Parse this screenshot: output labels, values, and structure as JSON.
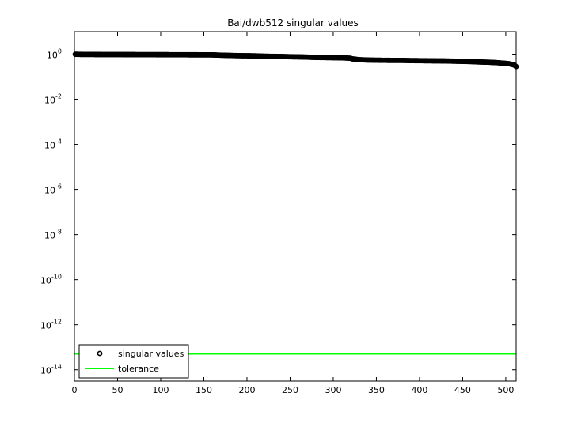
{
  "chart_data": {
    "type": "scatter",
    "title": "Bai/dwb512 singular values",
    "xlabel": "",
    "ylabel": "",
    "xlim": [
      0,
      512
    ],
    "ylim": [
      3.16e-15,
      10
    ],
    "yscale": "log",
    "x_ticks": [
      0,
      50,
      100,
      150,
      200,
      250,
      300,
      350,
      400,
      450,
      500
    ],
    "x_tick_labels": [
      "0",
      "50",
      "100",
      "150",
      "200",
      "250",
      "300",
      "350",
      "400",
      "450",
      "500"
    ],
    "y_ticks": [
      {
        "value": 1.0,
        "base": "10",
        "exp": "0"
      },
      {
        "value": 0.01,
        "base": "10",
        "exp": "-2"
      },
      {
        "value": 0.0001,
        "base": "10",
        "exp": "-4"
      },
      {
        "value": 1e-06,
        "base": "10",
        "exp": "-6"
      },
      {
        "value": 1e-08,
        "base": "10",
        "exp": "-8"
      },
      {
        "value": 1e-10,
        "base": "10",
        "exp": "-10"
      },
      {
        "value": 1e-12,
        "base": "10",
        "exp": "-12"
      },
      {
        "value": 1e-14,
        "base": "10",
        "exp": "-14"
      }
    ],
    "grid": false,
    "legend_position": "bottom-left",
    "series": [
      {
        "name": "singular values",
        "marker": "circle-open",
        "color": "#000000",
        "x": [
          1,
          10,
          20,
          30,
          40,
          50,
          60,
          70,
          80,
          90,
          100,
          110,
          120,
          130,
          140,
          150,
          160,
          170,
          180,
          190,
          200,
          210,
          220,
          230,
          240,
          250,
          260,
          270,
          280,
          290,
          300,
          310,
          320,
          322,
          330,
          340,
          350,
          360,
          370,
          380,
          390,
          400,
          410,
          420,
          430,
          440,
          450,
          460,
          470,
          480,
          490,
          500,
          505,
          510,
          512
        ],
        "y": [
          0.99,
          0.97,
          0.97,
          0.965,
          0.96,
          0.96,
          0.958,
          0.955,
          0.952,
          0.95,
          0.948,
          0.945,
          0.943,
          0.94,
          0.937,
          0.933,
          0.93,
          0.9,
          0.88,
          0.86,
          0.85,
          0.84,
          0.81,
          0.8,
          0.79,
          0.77,
          0.76,
          0.74,
          0.72,
          0.71,
          0.7,
          0.69,
          0.66,
          0.62,
          0.57,
          0.55,
          0.54,
          0.535,
          0.53,
          0.53,
          0.52,
          0.515,
          0.51,
          0.505,
          0.5,
          0.49,
          0.48,
          0.47,
          0.45,
          0.44,
          0.42,
          0.39,
          0.37,
          0.33,
          0.28
        ]
      },
      {
        "name": "tolerance",
        "marker": "line",
        "color": "#00ff00",
        "value": 5.1e-14
      }
    ]
  }
}
